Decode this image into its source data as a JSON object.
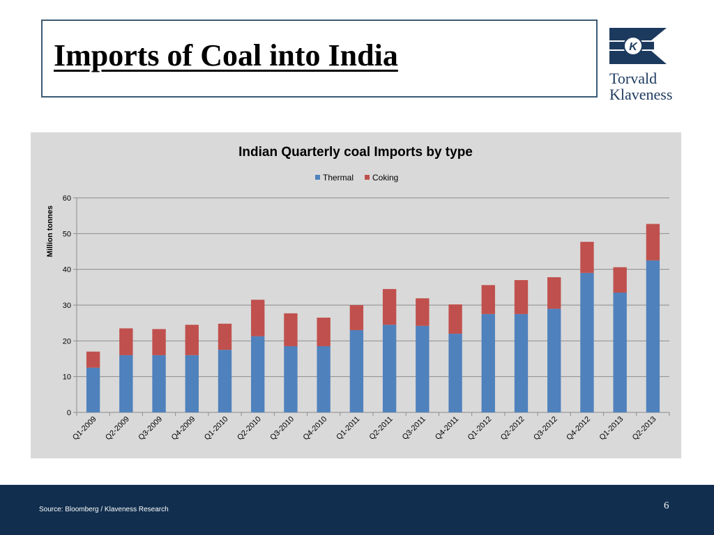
{
  "slide": {
    "title": "Imports of Coal into India",
    "logo": {
      "line1": "Torvald",
      "line2": "Klaveness",
      "mark_letter": "K"
    },
    "source": "Source: Bloomberg / Klaveness Research",
    "page_number": "6"
  },
  "colors": {
    "thermal": "#4f81bd",
    "coking": "#c0504d",
    "navy": "#112e4e",
    "panel": "#d9d9d9"
  },
  "chart_data": {
    "type": "bar",
    "stacked": true,
    "title": "Indian Quarterly coal Imports by type",
    "ylabel": "Million tonnes",
    "xlabel": "",
    "ylim": [
      0,
      60
    ],
    "yticks": [
      0,
      10,
      20,
      30,
      40,
      50,
      60
    ],
    "grid": true,
    "legend_position": "top",
    "categories": [
      "Q1-2009",
      "Q2-2009",
      "Q3-2009",
      "Q4-2009",
      "Q1-2010",
      "Q2-2010",
      "Q3-2010",
      "Q4-2010",
      "Q1-2011",
      "Q2-2011",
      "Q3-2011",
      "Q4-2011",
      "Q1-2012",
      "Q2-2012",
      "Q3-2012",
      "Q4-2012",
      "Q1-2013",
      "Q2-2013"
    ],
    "series": [
      {
        "name": "Thermal",
        "values": [
          12.5,
          16,
          16,
          16,
          17.5,
          21.3,
          18.5,
          18.5,
          23,
          24.5,
          24.2,
          22,
          27.5,
          27.5,
          29,
          39,
          33.5,
          42.5
        ]
      },
      {
        "name": "Coking",
        "values": [
          4.5,
          7.5,
          7.3,
          8.5,
          7.3,
          10.2,
          9.2,
          8,
          7,
          10,
          7.7,
          8.2,
          8.1,
          9.5,
          8.8,
          8.7,
          7.1,
          10.2
        ]
      }
    ]
  }
}
